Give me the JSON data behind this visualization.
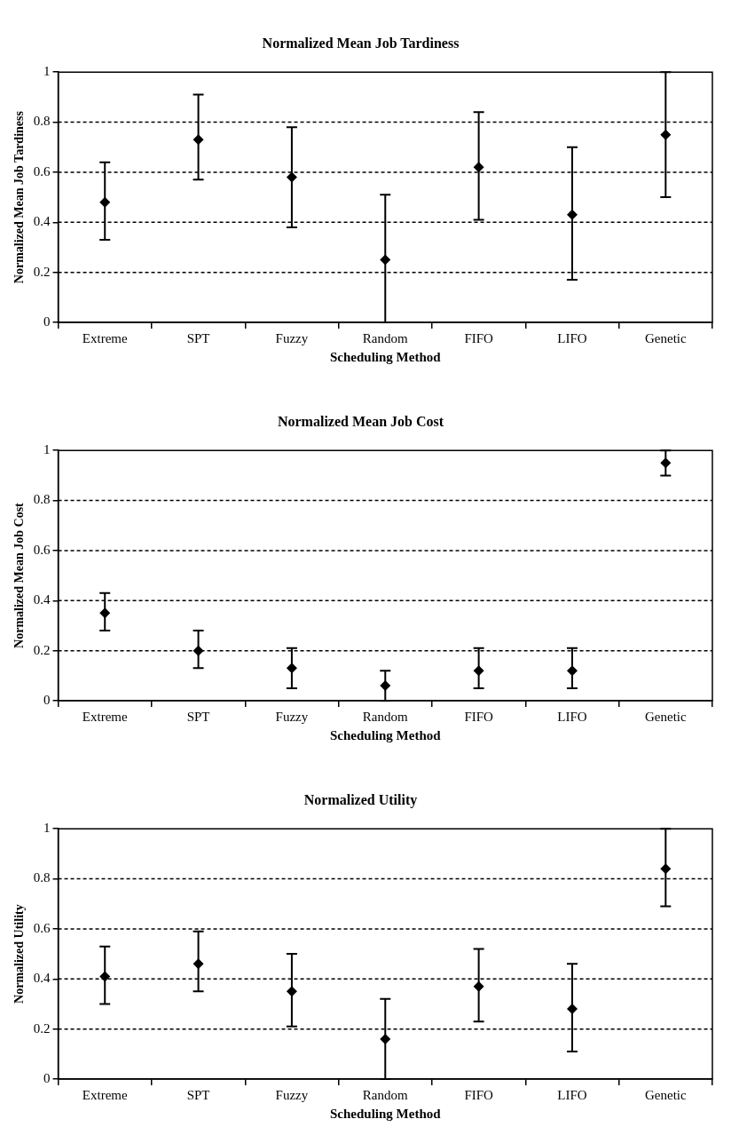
{
  "chart_data": [
    {
      "type": "scatter",
      "title": "Normalized Mean Job Tardiness",
      "xlabel": "Scheduling Method",
      "ylabel": "Normalized Mean Job Tardiness",
      "categories": [
        "Extreme",
        "SPT",
        "Fuzzy",
        "Random",
        "FIFO",
        "LIFO",
        "Genetic"
      ],
      "values": [
        0.48,
        0.73,
        0.58,
        0.25,
        0.62,
        0.43,
        0.75
      ],
      "errors": [
        [
          0.33,
          0.64
        ],
        [
          0.57,
          0.91
        ],
        [
          0.38,
          0.78
        ],
        [
          0.0,
          0.51
        ],
        [
          0.41,
          0.84
        ],
        [
          0.17,
          0.7
        ],
        [
          0.5,
          1.0
        ]
      ],
      "color": "#000000",
      "marker": "diamond",
      "ylim": [
        0,
        1
      ],
      "yticks": [
        0,
        0.2,
        0.4,
        0.6,
        0.8,
        1
      ],
      "grid": "y",
      "legend": false
    },
    {
      "type": "scatter",
      "title": "Normalized Mean Job Cost",
      "xlabel": "Scheduling Method",
      "ylabel": "Normalized Mean Job Cost",
      "categories": [
        "Extreme",
        "SPT",
        "Fuzzy",
        "Random",
        "FIFO",
        "LIFO",
        "Genetic"
      ],
      "values": [
        0.35,
        0.2,
        0.13,
        0.06,
        0.12,
        0.12,
        0.95
      ],
      "errors": [
        [
          0.28,
          0.43
        ],
        [
          0.13,
          0.28
        ],
        [
          0.05,
          0.21
        ],
        [
          0.0,
          0.12
        ],
        [
          0.05,
          0.21
        ],
        [
          0.05,
          0.21
        ],
        [
          0.9,
          1.0
        ]
      ],
      "color": "#000000",
      "marker": "diamond",
      "ylim": [
        0,
        1
      ],
      "yticks": [
        0,
        0.2,
        0.4,
        0.6,
        0.8,
        1
      ],
      "grid": "y",
      "legend": false
    },
    {
      "type": "scatter",
      "title": "Normalized Utility",
      "xlabel": "Scheduling Method",
      "ylabel": "Normalized Utility",
      "categories": [
        "Extreme",
        "SPT",
        "Fuzzy",
        "Random",
        "FIFO",
        "LIFO",
        "Genetic"
      ],
      "values": [
        0.41,
        0.46,
        0.35,
        0.16,
        0.37,
        0.28,
        0.84
      ],
      "errors": [
        [
          0.3,
          0.53
        ],
        [
          0.35,
          0.59
        ],
        [
          0.21,
          0.5
        ],
        [
          0.0,
          0.32
        ],
        [
          0.23,
          0.52
        ],
        [
          0.11,
          0.46
        ],
        [
          0.69,
          1.0
        ]
      ],
      "color": "#000000",
      "marker": "diamond",
      "ylim": [
        0,
        1
      ],
      "yticks": [
        0,
        0.2,
        0.4,
        0.6,
        0.8,
        1
      ],
      "grid": "y",
      "legend": false
    }
  ]
}
